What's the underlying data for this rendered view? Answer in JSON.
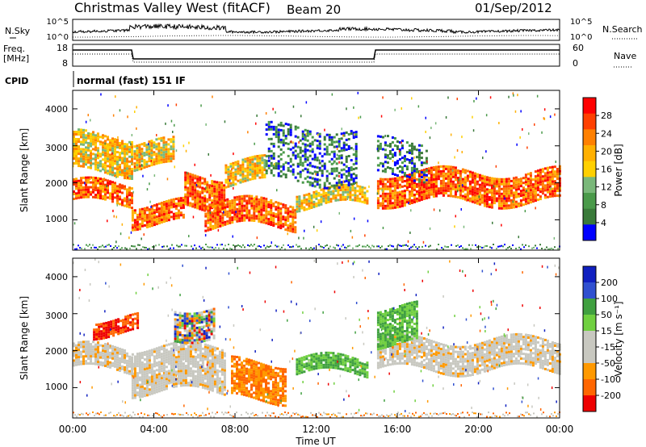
{
  "header": {
    "station": "Christmas Valley West (fitACF)",
    "beam": "Beam 20",
    "date": "01/Sep/2012"
  },
  "strips": {
    "nsky_label": "N.Sky",
    "nsky_ticks": [
      "10^5",
      "10^0"
    ],
    "nsearch_label": "N.Search",
    "nsearch_ticks": [
      "10^5",
      "10^0"
    ],
    "freq_label_1": "Freq.",
    "freq_label_2": "[MHz]",
    "freq_ticks": [
      "18",
      "8"
    ],
    "nave_label": "Nave",
    "nave_ticks": [
      "60",
      "0"
    ],
    "cpid_label": "CPID",
    "cpid_text": "normal (fast) 151 IF"
  },
  "colors": {
    "power_scale": [
      "#0000ff",
      "#3a7a3a",
      "#4a9a4a",
      "#7ab87a",
      "#ffd000",
      "#ffb000",
      "#ff8000",
      "#ff4000",
      "#ff0000"
    ],
    "velocity_scale": [
      "#1020c0",
      "#3050d0",
      "#40a040",
      "#70d040",
      "#c8c8c0",
      "#c8c8c0",
      "#ff9900",
      "#ff6600",
      "#ee0000"
    ]
  },
  "chart_data": [
    {
      "type": "heatmap",
      "title": "",
      "quantity": "Power",
      "ylabel": "Slant Range [km]",
      "yticks": [
        "4000",
        "3000",
        "2000",
        "1000"
      ],
      "ylim": [
        180,
        4500
      ],
      "xlim": [
        0,
        24
      ],
      "colorbar": {
        "label": "Power [dB]",
        "ticks": [
          "28",
          "24",
          "20",
          "16",
          "12",
          "8",
          "4"
        ],
        "range": [
          0,
          32
        ]
      },
      "echo_bands": [
        {
          "t0": 0.0,
          "t1": 2.9,
          "r0": 1450,
          "r1": 2000,
          "level": "high"
        },
        {
          "t0": 2.9,
          "t1": 5.5,
          "r0": 900,
          "r1": 1450,
          "level": "high"
        },
        {
          "t0": 5.5,
          "t1": 7.5,
          "r0": 1300,
          "r1": 2200,
          "level": "high"
        },
        {
          "t0": 7.5,
          "t1": 9.5,
          "r0": 2000,
          "r1": 2600,
          "level": "mid"
        },
        {
          "t0": 6.5,
          "t1": 11.0,
          "r0": 800,
          "r1": 1500,
          "level": "high"
        },
        {
          "t0": 11.0,
          "t1": 14.5,
          "r0": 1400,
          "r1": 1800,
          "level": "mid"
        },
        {
          "t0": 15.0,
          "t1": 24.0,
          "r0": 1450,
          "r1": 2300,
          "level": "high"
        },
        {
          "t0": 0.0,
          "t1": 2.9,
          "r0": 2300,
          "r1": 3300,
          "level": "mid"
        },
        {
          "t0": 3.0,
          "t1": 5.0,
          "r0": 2400,
          "r1": 3100,
          "level": "mid"
        },
        {
          "t0": 9.5,
          "t1": 14.0,
          "r0": 2000,
          "r1": 3500,
          "level": "low"
        },
        {
          "t0": 15.0,
          "t1": 17.5,
          "r0": 2200,
          "r1": 3200,
          "level": "low"
        }
      ]
    },
    {
      "type": "heatmap",
      "title": "",
      "quantity": "Velocity",
      "ylabel": "Slant Range [km]",
      "xlabel": "Time UT",
      "xticks": [
        "00:00",
        "04:00",
        "08:00",
        "12:00",
        "16:00",
        "20:00",
        "00:00"
      ],
      "yticks": [
        "4000",
        "3000",
        "2000",
        "1000"
      ],
      "ylim": [
        180,
        4500
      ],
      "xlim": [
        0,
        24
      ],
      "colorbar": {
        "label": "Velocity [m s⁻¹]",
        "ticks": [
          "200",
          "100",
          "50",
          "15",
          "-15",
          "-50",
          "-100",
          "-200"
        ],
        "range": [
          -250,
          250
        ]
      },
      "echo_bands": [
        {
          "t0": 0.0,
          "t1": 2.9,
          "r0": 1450,
          "r1": 2100,
          "level": "ground"
        },
        {
          "t0": 2.9,
          "t1": 7.5,
          "r0": 900,
          "r1": 2100,
          "level": "ground"
        },
        {
          "t0": 15.0,
          "t1": 24.0,
          "r0": 1450,
          "r1": 2300,
          "level": "ground"
        },
        {
          "t0": 1.0,
          "t1": 3.2,
          "r0": 2500,
          "r1": 2900,
          "level": "negative-high"
        },
        {
          "t0": 5.0,
          "t1": 7.0,
          "r0": 2400,
          "r1": 3200,
          "level": "mixed"
        },
        {
          "t0": 7.8,
          "t1": 10.5,
          "r0": 700,
          "r1": 1700,
          "level": "negative-mid"
        },
        {
          "t0": 11.0,
          "t1": 14.5,
          "r0": 1400,
          "r1": 1800,
          "level": "positive-low"
        },
        {
          "t0": 15.0,
          "t1": 17.0,
          "r0": 2200,
          "r1": 3200,
          "level": "positive-low"
        }
      ]
    }
  ]
}
